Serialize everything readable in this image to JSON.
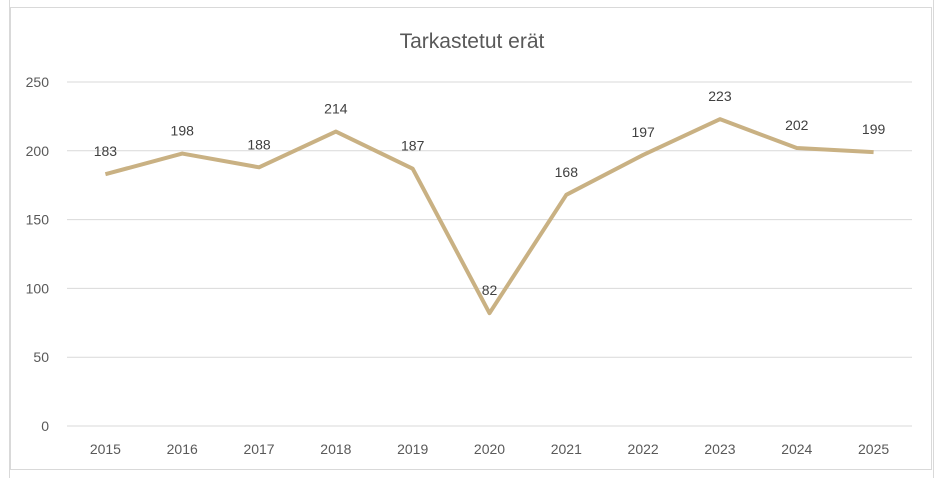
{
  "chart_data": {
    "type": "line",
    "title": "Tarkastetut erät",
    "xlabel": "",
    "ylabel": "",
    "categories": [
      "2015",
      "2016",
      "2017",
      "2018",
      "2019",
      "2020",
      "2021",
      "2022",
      "2023",
      "2024",
      "2025"
    ],
    "series": [
      {
        "name": "Tarkastetut erät",
        "values": [
          183,
          198,
          188,
          214,
          187,
          82,
          168,
          197,
          223,
          202,
          199
        ],
        "color": "#c9b183"
      }
    ],
    "ylim": [
      0,
      250
    ],
    "yticks": [
      0,
      50,
      100,
      150,
      200,
      250
    ],
    "grid": true,
    "legend": "none",
    "data_labels": true
  },
  "colors": {
    "line": "#c9b183",
    "grid": "#d9d9d9",
    "text": "#595959"
  }
}
